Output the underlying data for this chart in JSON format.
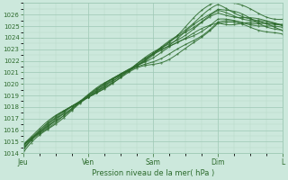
{
  "xlabel": "Pression niveau de la mer( hPa )",
  "ylim": [
    1014,
    1027
  ],
  "yticks": [
    1014,
    1015,
    1016,
    1017,
    1018,
    1019,
    1020,
    1021,
    1022,
    1023,
    1024,
    1025,
    1026
  ],
  "day_labels": [
    "Jeu",
    "Ven",
    "Sam",
    "Dim",
    "L"
  ],
  "day_positions": [
    0,
    24,
    48,
    72,
    96
  ],
  "background_color": "#cce8dc",
  "grid_major_color": "#9dc8b4",
  "grid_minor_color": "#b8d8c8",
  "line_color": "#2d6b2d",
  "total_hours": 96,
  "num_lines": 9,
  "figwidth": 3.2,
  "figheight": 2.0,
  "dpi": 100
}
